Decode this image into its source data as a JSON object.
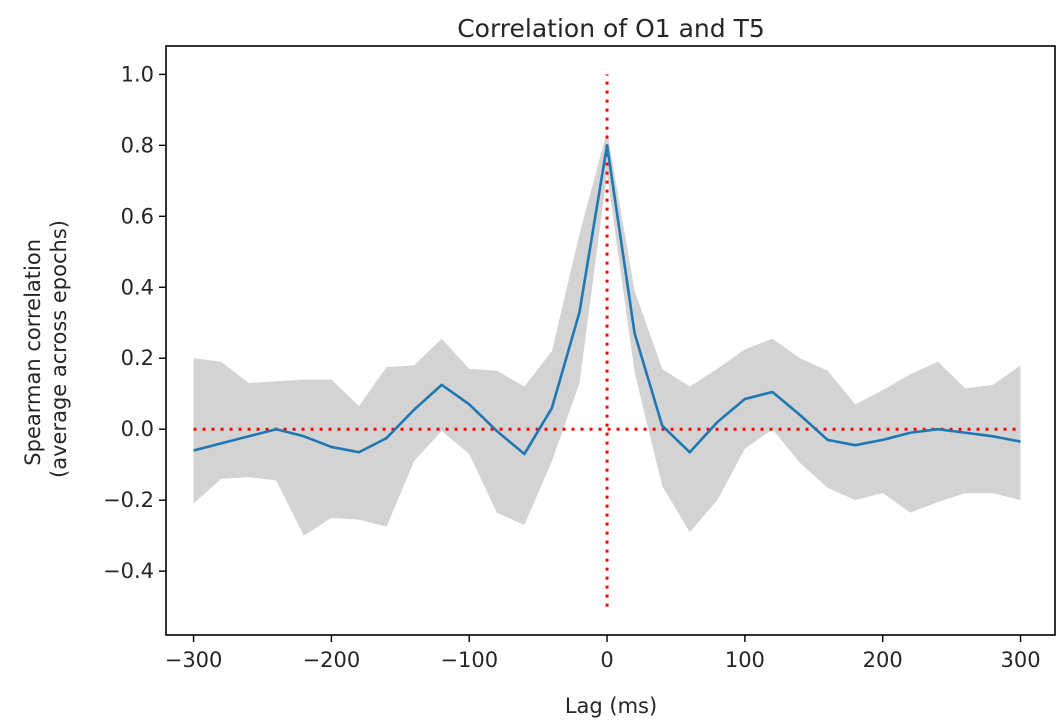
{
  "chart_data": {
    "type": "line",
    "title": "Correlation of O1 and T5",
    "xlabel": "Lag (ms)",
    "ylabel": [
      "Spearman correlation",
      "(average across epochs)"
    ],
    "xlim": [
      -320,
      325
    ],
    "ylim": [
      -0.58,
      1.08
    ],
    "xticks": [
      -300,
      -200,
      -100,
      0,
      100,
      200,
      300
    ],
    "xtick_labels": [
      "−300",
      "−200",
      "−100",
      "0",
      "100",
      "200",
      "300"
    ],
    "yticks": [
      -0.4,
      -0.2,
      0.0,
      0.2,
      0.4,
      0.6,
      0.8,
      1.0
    ],
    "ytick_labels": [
      "−0.4",
      "−0.2",
      "0.0",
      "0.2",
      "0.4",
      "0.6",
      "0.8",
      "1.0"
    ],
    "grid": false,
    "x": [
      -300,
      -280,
      -260,
      -240,
      -220,
      -200,
      -180,
      -160,
      -140,
      -120,
      -100,
      -80,
      -60,
      -40,
      -20,
      0,
      20,
      40,
      60,
      80,
      100,
      120,
      140,
      160,
      180,
      200,
      220,
      240,
      260,
      280,
      300
    ],
    "series": [
      {
        "color": "#1f77b4",
        "values": [
          -0.06,
          -0.04,
          -0.02,
          0.0,
          -0.02,
          -0.05,
          -0.065,
          -0.025,
          0.055,
          0.125,
          0.07,
          -0.005,
          -0.07,
          0.06,
          0.33,
          0.8,
          0.27,
          0.01,
          -0.065,
          0.02,
          0.085,
          0.105,
          0.04,
          -0.03,
          -0.045,
          -0.03,
          -0.01,
          0.0,
          -0.01,
          -0.02,
          -0.035
        ]
      }
    ],
    "band": {
      "color": "#d3d3d3",
      "upper": [
        0.2,
        0.19,
        0.13,
        0.135,
        0.14,
        0.14,
        0.065,
        0.175,
        0.18,
        0.255,
        0.17,
        0.165,
        0.12,
        0.22,
        0.55,
        0.84,
        0.39,
        0.17,
        0.12,
        0.17,
        0.225,
        0.255,
        0.2,
        0.165,
        0.07,
        0.11,
        0.155,
        0.19,
        0.115,
        0.125,
        0.18
      ],
      "lower": [
        -0.21,
        -0.14,
        -0.135,
        -0.145,
        -0.3,
        -0.25,
        -0.255,
        -0.275,
        -0.09,
        -0.005,
        -0.07,
        -0.235,
        -0.27,
        -0.09,
        0.13,
        0.72,
        0.16,
        -0.16,
        -0.29,
        -0.2,
        -0.055,
        0.0,
        -0.095,
        -0.165,
        -0.2,
        -0.18,
        -0.235,
        -0.205,
        -0.18,
        -0.18,
        -0.2
      ]
    },
    "reference_lines": [
      {
        "orientation": "horizontal",
        "value": 0.0,
        "range": [
          -300,
          300
        ],
        "color": "#ff0000",
        "style": "dotted"
      },
      {
        "orientation": "vertical",
        "value": 0,
        "range": [
          -0.5,
          1.0
        ],
        "color": "#ff0000",
        "style": "dotted"
      }
    ]
  }
}
